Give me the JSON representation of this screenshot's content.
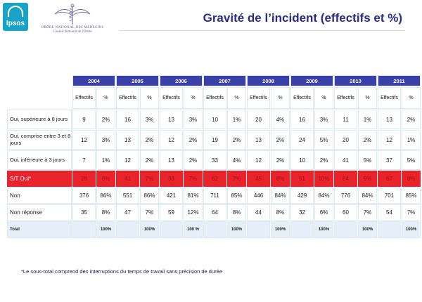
{
  "header": {
    "ipsos_logo_text": "Ipsos",
    "ordre_line1": "ORDRE NATIONAL DES MÉDECINS",
    "ordre_line2": "Conseil National de l'Ordre",
    "title": "Gravité de l’incident (effectifs et %)"
  },
  "table": {
    "years": [
      "2004",
      "2005",
      "2006",
      "2007",
      "2008",
      "2009",
      "2010",
      "2011"
    ],
    "sub_headers": {
      "effectifs": "Effectifs",
      "pct": "%"
    },
    "rows": [
      {
        "label": "Oui, supérieure à 8 jours",
        "cells": [
          "9",
          "2%",
          "16",
          "3%",
          "13",
          "3%",
          "10",
          "1%",
          "20",
          "4%",
          "16",
          "3%",
          "11",
          "1%",
          "13",
          "2%"
        ]
      },
      {
        "label": "Oui, comprise entre 3 et 8 jours",
        "cells": [
          "12",
          "3%",
          "13",
          "2%",
          "12",
          "2%",
          "19",
          "2%",
          "13",
          "2%",
          "24",
          "5%",
          "20",
          "2%",
          "12",
          "1%"
        ]
      },
      {
        "label": "Oui, inférieure à 3 jours",
        "cells": [
          "7",
          "1%",
          "12",
          "2%",
          "13",
          "2%",
          "33",
          "4%",
          "12",
          "2%",
          "10",
          "2%",
          "41",
          "5%",
          "37",
          "5%"
        ]
      },
      {
        "label": "S/T Oui*",
        "cells": [
          "28",
          "6%",
          "41",
          "7%",
          "38",
          "7%",
          "62",
          "7%",
          "45",
          "8%",
          "51",
          "10%",
          "84",
          "9%",
          "67",
          "8%"
        ]
      },
      {
        "label": "Non",
        "cells": [
          "376",
          "86%",
          "551",
          "86%",
          "421",
          "81%",
          "711",
          "85%",
          "446",
          "84%",
          "429",
          "84%",
          "776",
          "84%",
          "701",
          "85%"
        ]
      },
      {
        "label": "Non réponse",
        "cells": [
          "35",
          "8%",
          "47",
          "7%",
          "59",
          "12%",
          "64",
          "8%",
          "44",
          "8%",
          "32",
          "6%",
          "60",
          "7%",
          "54",
          "7%"
        ]
      },
      {
        "label": "Total",
        "cells": [
          "",
          "100%",
          "",
          "100%",
          "",
          "100 %",
          "",
          "100%",
          "",
          "100%",
          "",
          "100%",
          "",
          "100%",
          "",
          "100%"
        ]
      }
    ]
  },
  "footnote": "*Le sous-total comprend des interruptions du temps de travail sans précision de durée",
  "colors": {
    "header_blue": "#3b3fa8",
    "label_bg": "#e4eff9",
    "highlight_red": "#e8232b",
    "title": "#2b2b8c"
  }
}
